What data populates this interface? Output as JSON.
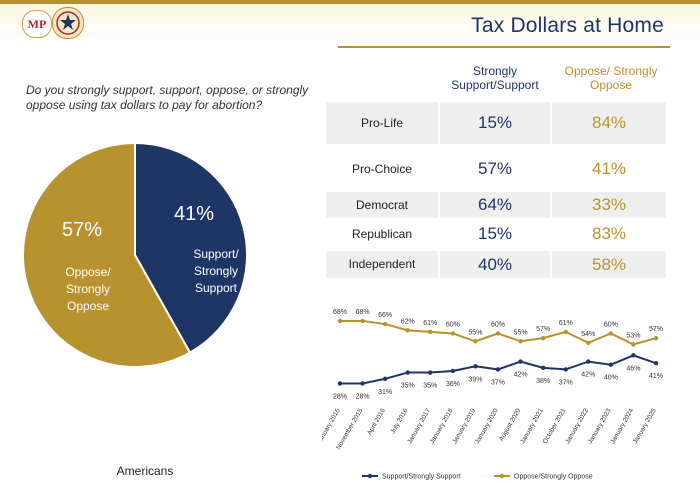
{
  "header": {
    "title": "Tax Dollars at Home",
    "logo_text": "MP"
  },
  "question": "Do you strongly support, support, oppose, or strongly oppose using tax dollars to pay for abortion?",
  "footer": {
    "label": "Americans"
  },
  "colors": {
    "navy": "#1f3566",
    "gold": "#b8922e",
    "row_shade": "#efefef"
  },
  "table": {
    "headers": {
      "support": "Strongly Support/Support",
      "oppose": "Oppose/ Strongly Oppose"
    },
    "rows": [
      {
        "label": "Pro-Life",
        "support": "15%",
        "oppose": "84%"
      },
      {
        "label": "Pro-Choice",
        "support": "57%",
        "oppose": "41%"
      },
      {
        "label": "Democrat",
        "support": "64%",
        "oppose": "33%"
      },
      {
        "label": "Republican",
        "support": "15%",
        "oppose": "83%"
      },
      {
        "label": "Independent",
        "support": "40%",
        "oppose": "58%"
      }
    ]
  },
  "chart_data": [
    {
      "type": "pie",
      "slices": [
        {
          "label": "Support/ Strongly Support",
          "value": 41,
          "display": "41%",
          "color": "#1f3566"
        },
        {
          "label": "Oppose/ Strongly Oppose",
          "value": 57,
          "display": "57%",
          "color": "#b8922e"
        }
      ]
    },
    {
      "type": "line",
      "x": [
        "January 2015",
        "November 2015",
        "April 2016",
        "July 2016",
        "January 2017",
        "January 2018",
        "January 2019",
        "January 2020",
        "August 2020",
        "January 2021",
        "October 2021",
        "January 2022",
        "January 2023",
        "January 2024",
        "January 2025"
      ],
      "series": [
        {
          "name": "Support/Strongly Support",
          "color": "#1f3566",
          "values": [
            28,
            28,
            31,
            35,
            35,
            36,
            39,
            37,
            42,
            38,
            37,
            42,
            40,
            46,
            41
          ]
        },
        {
          "name": "Oppose/Strongly Oppose",
          "color": "#b8922e",
          "values": [
            68,
            68,
            66,
            62,
            61,
            60,
            55,
            60,
            55,
            57,
            61,
            54,
            60,
            53,
            57
          ]
        }
      ],
      "ylim": [
        20,
        75
      ],
      "grid": false,
      "legend": "bottom"
    }
  ]
}
